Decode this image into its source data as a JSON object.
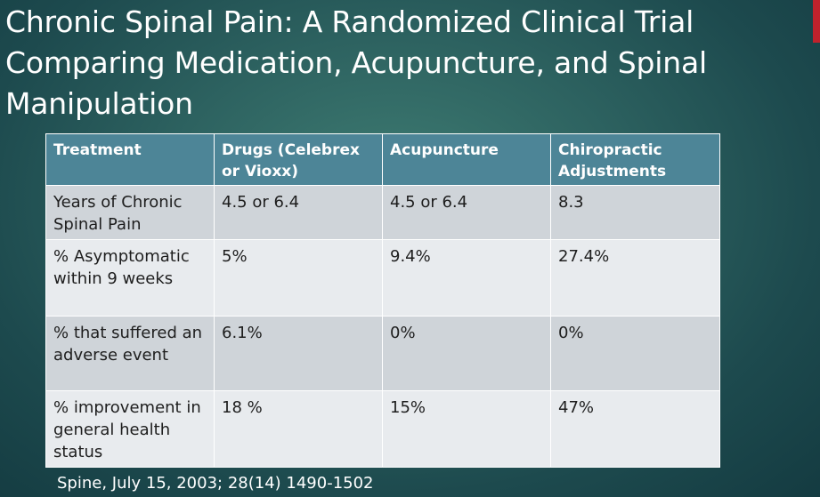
{
  "slide": {
    "title": "Chronic Spinal Pain: A Randomized Clinical Trial Comparing Medication, Acupuncture, and Spinal Manipulation",
    "citation": "Spine, July 15, 2003; 28(14) 1490-1502",
    "accent_color": "#c0222c"
  },
  "table": {
    "headers": [
      "Treatment",
      "Drugs (Celebrex or Vioxx)",
      "Acupuncture",
      "Chiropractic Adjustments"
    ],
    "rows": [
      [
        "Years of Chronic Spinal Pain",
        "4.5 or 6.4",
        "4.5 or 6.4",
        "8.3"
      ],
      [
        "% Asymptomatic within 9 weeks",
        "5%",
        "9.4%",
        "27.4%"
      ],
      [
        "% that suffered an adverse event",
        "6.1%",
        "0%",
        "0%"
      ],
      [
        "% improvement in general health status",
        "18 %",
        "15%",
        "47%"
      ]
    ]
  }
}
